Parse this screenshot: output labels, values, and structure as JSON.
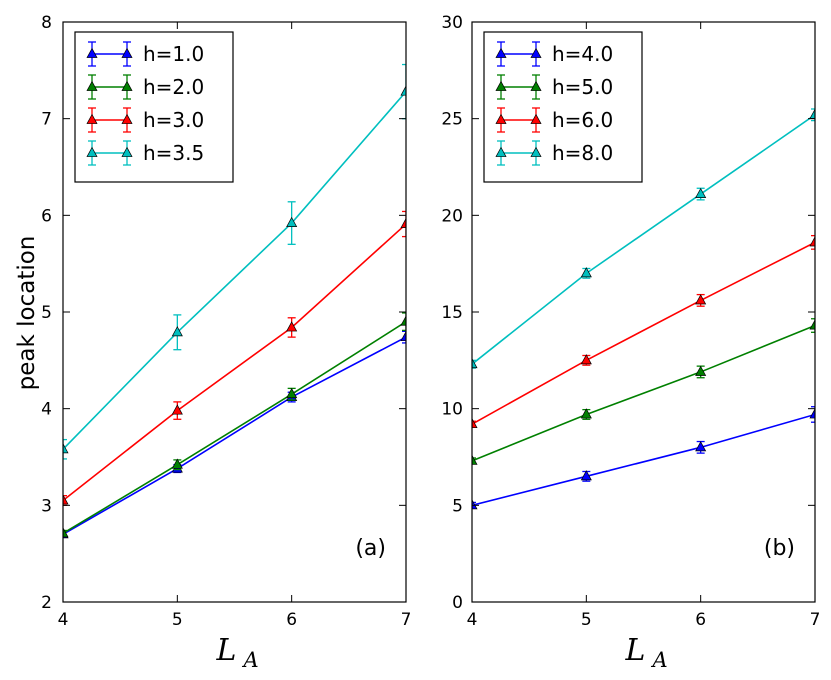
{
  "ylabel": "peak location",
  "chart_data": [
    {
      "type": "line",
      "panel_label": "(a)",
      "xlabel_main": "L",
      "xlabel_sub": "A",
      "x": [
        4,
        5,
        6,
        7
      ],
      "xlim": [
        4,
        7
      ],
      "ylim": [
        2,
        8
      ],
      "xticks": [
        "4",
        "5",
        "6",
        "7"
      ],
      "yticks": [
        "2",
        "3",
        "4",
        "5",
        "6",
        "7",
        "8"
      ],
      "legend_position": "top-left",
      "series": [
        {
          "name": "h=1.0",
          "color": "#0000ff",
          "values": [
            2.7,
            3.38,
            4.12,
            4.74
          ],
          "errors": [
            0.03,
            0.04,
            0.05,
            0.06
          ]
        },
        {
          "name": "h=2.0",
          "color": "#008000",
          "values": [
            2.71,
            3.42,
            4.15,
            4.9
          ],
          "errors": [
            0.03,
            0.05,
            0.06,
            0.09
          ]
        },
        {
          "name": "h=3.0",
          "color": "#ff0000",
          "values": [
            3.05,
            3.98,
            4.84,
            5.91
          ],
          "errors": [
            0.05,
            0.09,
            0.1,
            0.13
          ]
        },
        {
          "name": "h=3.5",
          "color": "#00bfbf",
          "values": [
            3.58,
            4.79,
            5.92,
            7.28
          ],
          "errors": [
            0.1,
            0.18,
            0.22,
            0.28
          ]
        }
      ]
    },
    {
      "type": "line",
      "panel_label": "(b)",
      "xlabel_main": "L",
      "xlabel_sub": "A",
      "x": [
        4,
        5,
        6,
        7
      ],
      "xlim": [
        4,
        7
      ],
      "ylim": [
        0,
        30
      ],
      "xticks": [
        "4",
        "5",
        "6",
        "7"
      ],
      "yticks": [
        "0",
        "5",
        "10",
        "15",
        "20",
        "25",
        "30"
      ],
      "legend_position": "top-left",
      "series": [
        {
          "name": "h=4.0",
          "color": "#0000ff",
          "values": [
            5.0,
            6.5,
            8.0,
            9.7
          ],
          "errors": [
            0.15,
            0.25,
            0.3,
            0.4
          ]
        },
        {
          "name": "h=5.0",
          "color": "#008000",
          "values": [
            7.3,
            9.7,
            11.9,
            14.3
          ],
          "errors": [
            0.15,
            0.25,
            0.3,
            0.35
          ]
        },
        {
          "name": "h=6.0",
          "color": "#ff0000",
          "values": [
            9.2,
            12.5,
            15.6,
            18.6
          ],
          "errors": [
            0.15,
            0.25,
            0.3,
            0.35
          ]
        },
        {
          "name": "h=8.0",
          "color": "#00bfbf",
          "values": [
            12.3,
            17.0,
            21.1,
            25.2
          ],
          "errors": [
            0.2,
            0.25,
            0.3,
            0.3
          ]
        }
      ]
    }
  ]
}
